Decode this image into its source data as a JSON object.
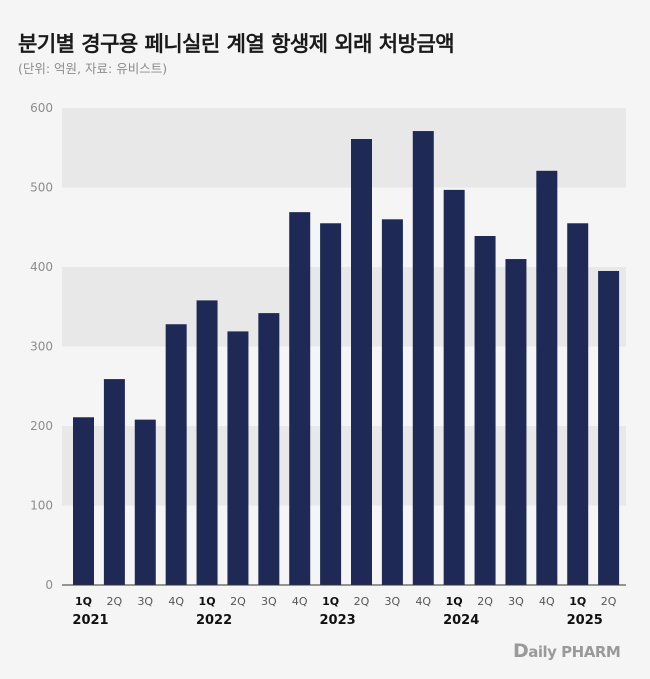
{
  "chart_data": {
    "type": "bar",
    "title": "분기별 경구용 페니실린 계열 항생제 외래 처방금액",
    "subtitle": "(단위: 억원, 자료: 유비스트)",
    "quarters": [
      "1Q",
      "2Q",
      "3Q",
      "4Q",
      "1Q",
      "2Q",
      "3Q",
      "4Q",
      "1Q",
      "2Q",
      "3Q",
      "4Q",
      "1Q",
      "2Q",
      "3Q",
      "4Q",
      "1Q",
      "2Q"
    ],
    "years": [
      {
        "label": "2021",
        "index": 0
      },
      {
        "label": "2022",
        "index": 4
      },
      {
        "label": "2023",
        "index": 8
      },
      {
        "label": "2024",
        "index": 12
      },
      {
        "label": "2025",
        "index": 16
      }
    ],
    "values": [
      211,
      259,
      208,
      328,
      358,
      319,
      342,
      469,
      455,
      561,
      460,
      571,
      497,
      439,
      410,
      521,
      455,
      395
    ],
    "ylim": [
      0,
      600
    ],
    "yticks": [
      0,
      100,
      200,
      300,
      400,
      500,
      600
    ],
    "bar_color": "#1e2a55",
    "band_color": "#e8e8e8",
    "grid": true
  },
  "logo": {
    "d": "D",
    "rest": "aily PHARM"
  }
}
